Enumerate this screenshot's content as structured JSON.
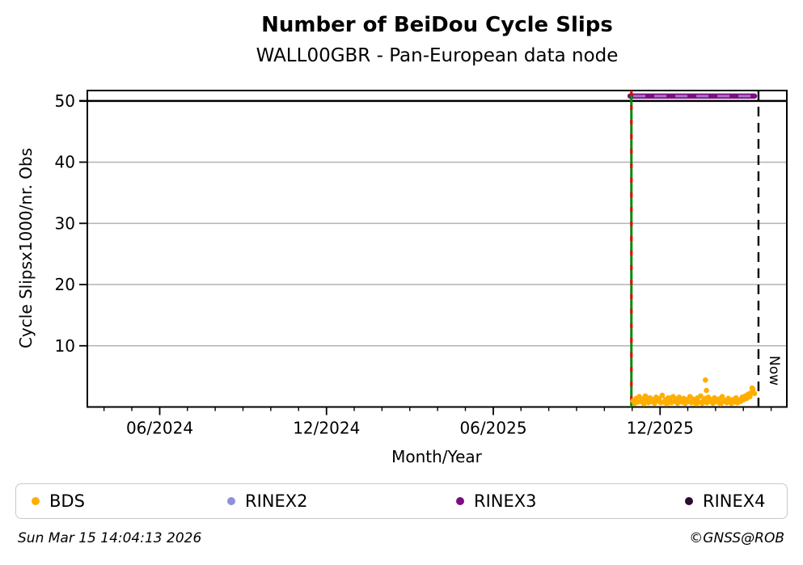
{
  "header": {
    "title": "Number of BeiDou Cycle Slips",
    "subtitle": "WALL00GBR - Pan-European data node"
  },
  "legend": {
    "items": [
      {
        "label": "BDS",
        "color": "#FFAE00"
      },
      {
        "label": "RINEX2",
        "color": "#9090D8"
      },
      {
        "label": "RINEX3",
        "color": "#7B0E80"
      },
      {
        "label": "RINEX4",
        "color": "#2B0A33"
      }
    ]
  },
  "footer": {
    "timestamp": "Sun Mar 15 14:04:13 2026",
    "credit": "©GNSS@ROB"
  },
  "chart_data": {
    "type": "scatter",
    "title": "Number of BeiDou Cycle Slips",
    "subtitle": "WALL00GBR - Pan-European data node",
    "xlabel": "Month/Year",
    "ylabel": "Cycle Slipsx1000/nr. Obs",
    "x_domain_years": [
      2024.2,
      2026.297
    ],
    "ylim": [
      0,
      51.7
    ],
    "yticks": [
      10,
      20,
      30,
      40,
      50
    ],
    "xticks": [
      {
        "t": 2024.417,
        "label": "06/2024"
      },
      {
        "t": 2024.917,
        "label": "12/2024"
      },
      {
        "t": 2025.417,
        "label": "06/2025"
      },
      {
        "t": 2025.917,
        "label": "12/2025"
      }
    ],
    "minor_ticks": {
      "start": 2024.25,
      "step": 0.0833333,
      "end": 2026.29
    },
    "grid": "horizontal-only",
    "gridline_color": "#B3B3B3",
    "threshold_line": {
      "y": 50,
      "color": "#000000"
    },
    "event_line": {
      "t": 2025.831,
      "color": "#0B8A0B",
      "dash_color": "#E10600"
    },
    "now_line": {
      "t": 2026.212,
      "label": "Now",
      "color": "#000000"
    },
    "rinex3_line": {
      "name": "RINEX3",
      "t_start": 2025.827,
      "t_end": 2026.2,
      "y": 50.8,
      "color": "#7B0E80",
      "dash_overlay_color": "#AC74C9"
    },
    "bds_scatter": {
      "name": "BDS",
      "color": "#FFAE00",
      "t_start": 2025.836,
      "t_end": 2026.2,
      "values": [
        1.0,
        0.6,
        1.4,
        0.8,
        1.7,
        0.9,
        1.3,
        0.5,
        1.8,
        1.1,
        0.7,
        1.5,
        0.9,
        1.2,
        0.6,
        1.6,
        1.0,
        1.4,
        0.7,
        1.9,
        0.8,
        1.2,
        0.5,
        1.5,
        1.0,
        0.7,
        1.7,
        0.9,
        1.3,
        0.6,
        1.6,
        1.1,
        0.8,
        1.4,
        0.6,
        1.2,
        0.9,
        1.7,
        0.7,
        1.3,
        1.0,
        0.5,
        1.5,
        0.8,
        1.8,
        0.6,
        1.1,
        1.4,
        0.7,
        1.6,
        0.9,
        1.2,
        0.6,
        1.5,
        1.0,
        0.8,
        1.3,
        0.5,
        1.7,
        0.9,
        1.1,
        0.7,
        1.4,
        1.0,
        0.6,
        1.2,
        0.8,
        1.5,
        0.7,
        1.1,
        0.9,
        1.6,
        1.2,
        1.8,
        1.4,
        2.1,
        1.7,
        2.4,
        2.9,
        2.2
      ],
      "outliers": [
        [
          2026.053,
          4.4
        ],
        [
          2026.056,
          2.7
        ],
        [
          2026.193,
          3.1
        ]
      ]
    }
  }
}
